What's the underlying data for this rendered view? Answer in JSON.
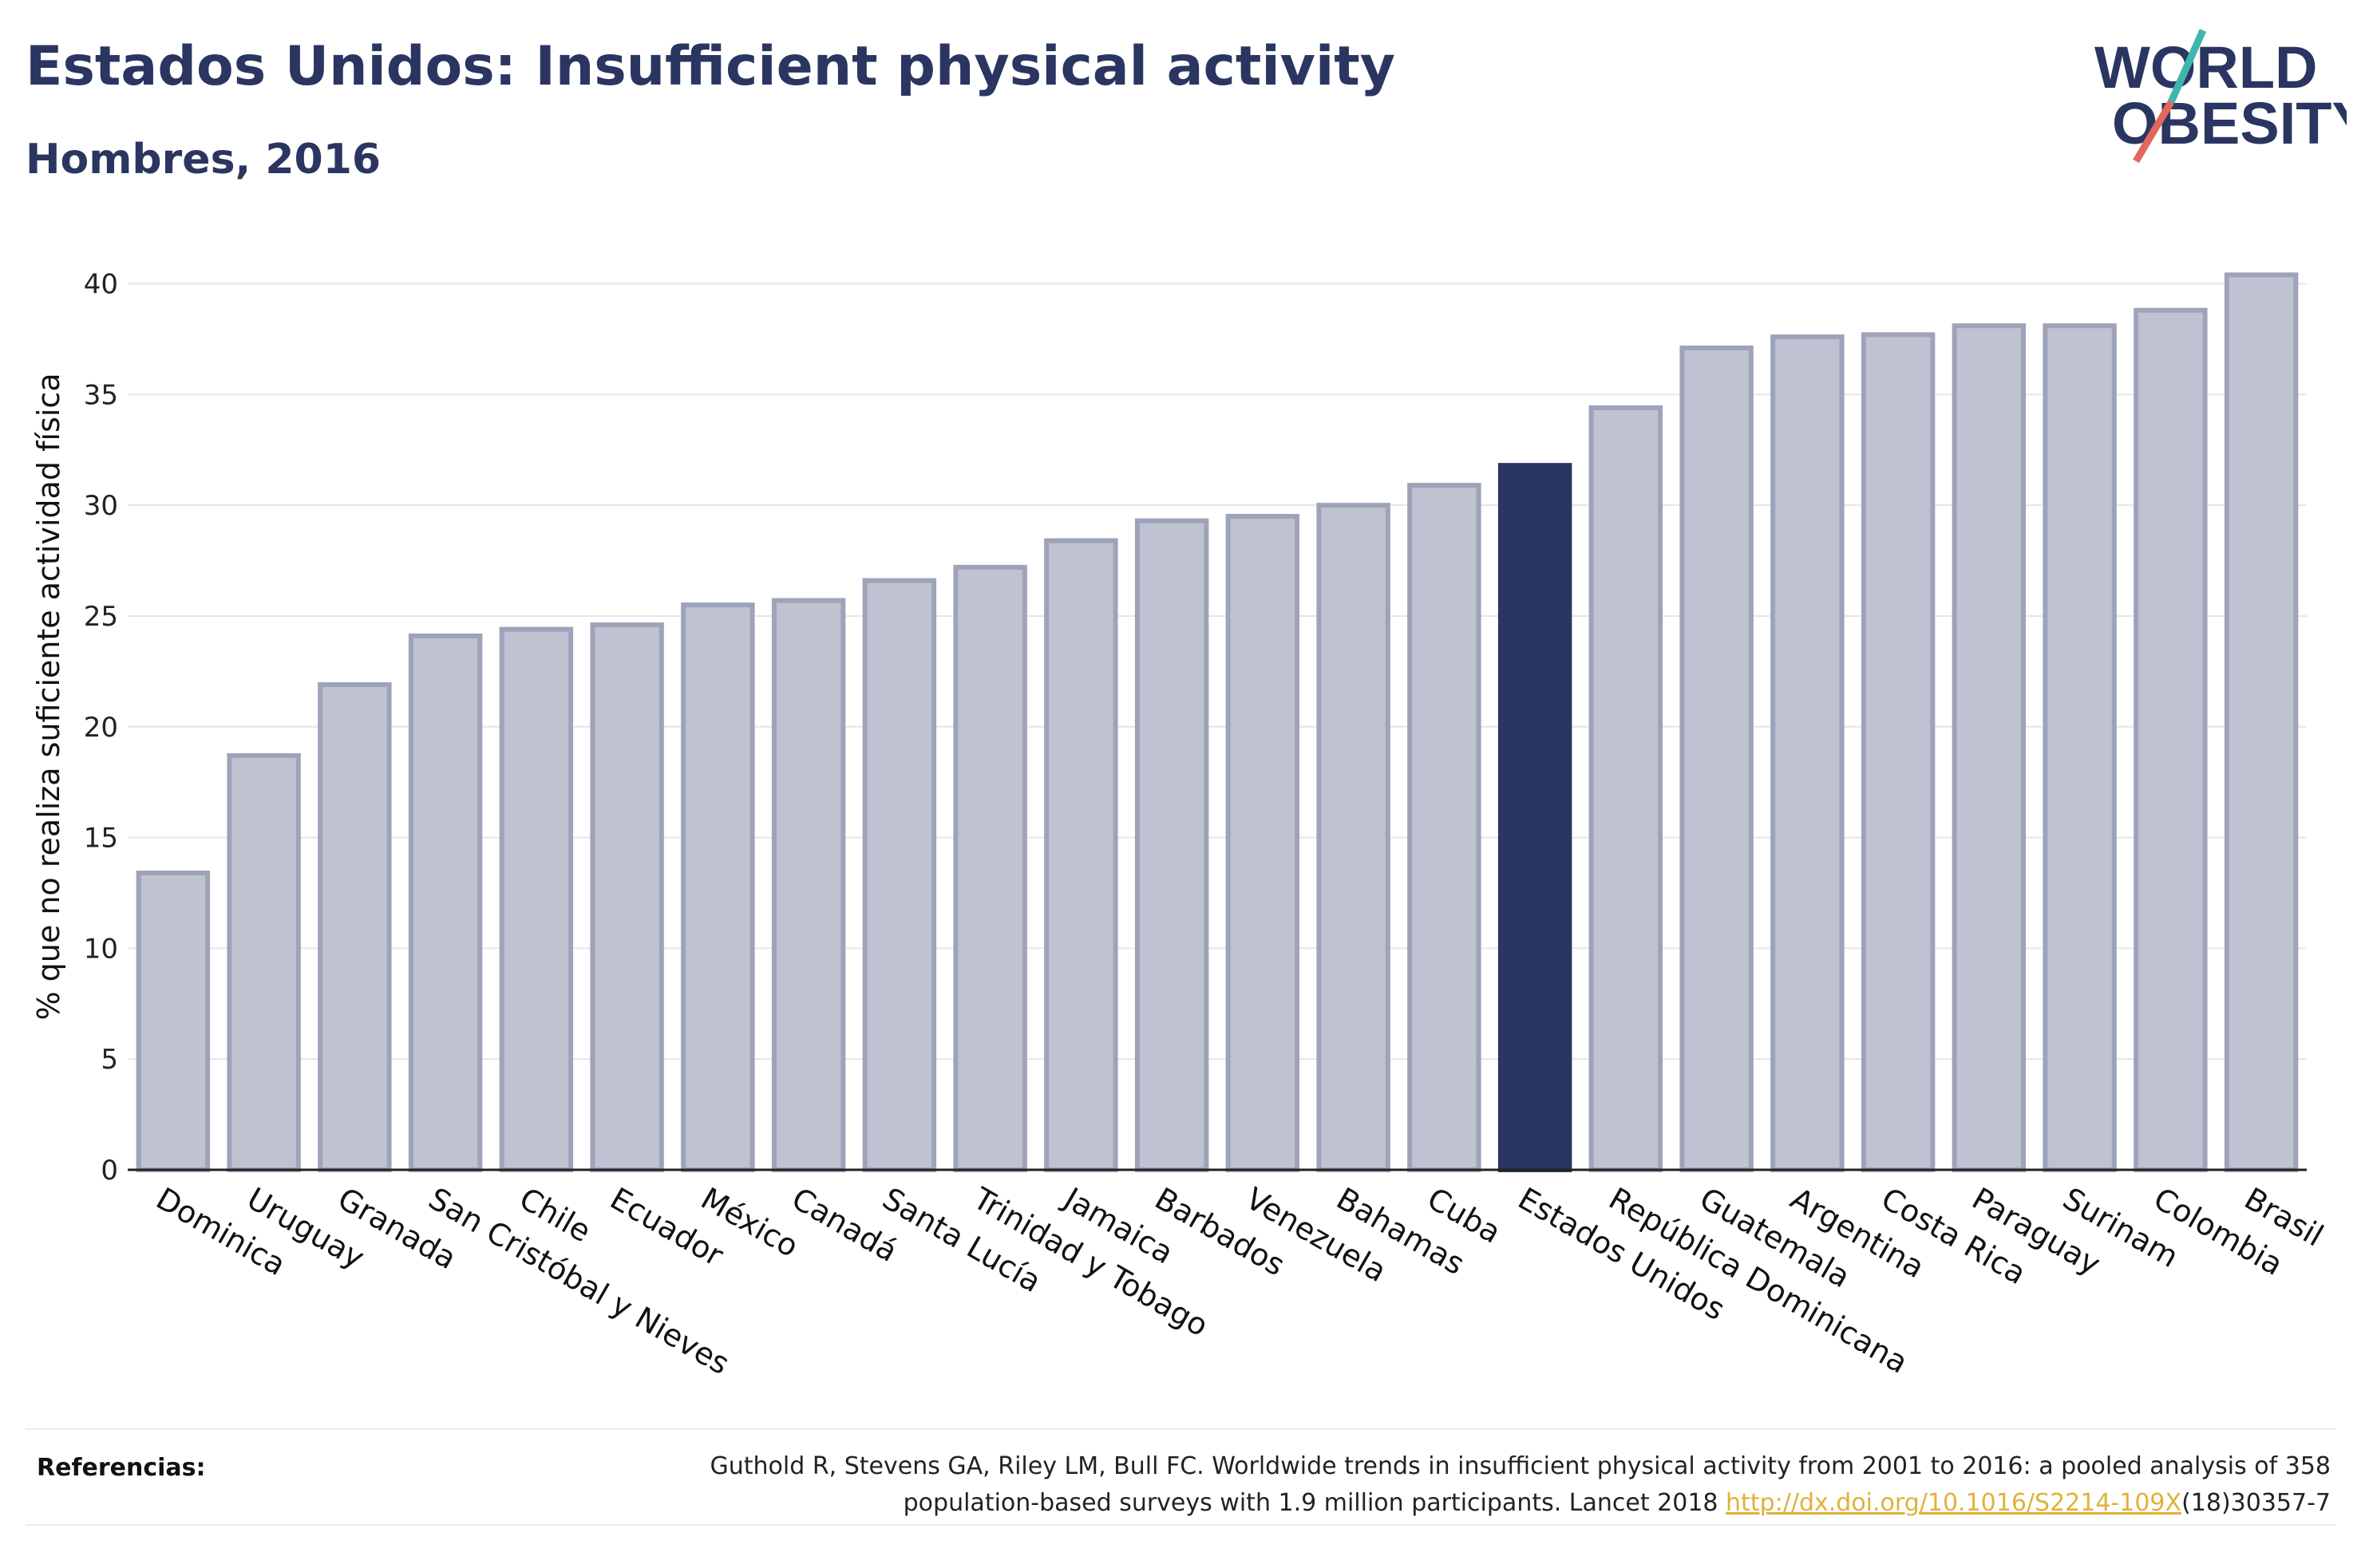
{
  "header": {
    "title": "Estados Unidos: Insufficient physical activity",
    "subtitle": "Hombres, 2016"
  },
  "logo": {
    "line1": "WORLD",
    "line2": "OBESITY"
  },
  "colors": {
    "highlight": "#2b3561",
    "bar_fill": "#bfc2d0",
    "bar_stroke": "#9ea3b9",
    "grid": "#e6e6e6",
    "axis": "#222222",
    "logo_teal": "#3fb5ad",
    "logo_coral": "#e4675b"
  },
  "chart_data": {
    "type": "bar",
    "title": "Estados Unidos: Insufficient physical activity",
    "subtitle": "Hombres, 2016",
    "xlabel": "",
    "ylabel": "% que no realiza suficiente actividad física",
    "ylim": [
      0,
      42
    ],
    "yticks": [
      0,
      5,
      10,
      15,
      20,
      25,
      30,
      35,
      40
    ],
    "grid": true,
    "highlight": "Estados Unidos",
    "categories": [
      "Dominica",
      "Uruguay",
      "Granada",
      "San Cristóbal y Nieves",
      "Chile",
      "Ecuador",
      "México",
      "Canadá",
      "Santa Lucía",
      "Trinidad y Tobago",
      "Jamaica",
      "Barbados",
      "Venezuela",
      "Bahamas",
      "Cuba",
      "Estados Unidos",
      "República Dominicana",
      "Guatemala",
      "Argentina",
      "Costa Rica",
      "Paraguay",
      "Surinam",
      "Colombia",
      "Brasil"
    ],
    "values": [
      13.4,
      18.7,
      21.9,
      24.1,
      24.4,
      24.6,
      25.5,
      25.7,
      26.6,
      27.2,
      28.4,
      29.3,
      29.5,
      30.0,
      30.9,
      31.8,
      34.4,
      37.1,
      37.6,
      37.7,
      38.1,
      38.1,
      38.8,
      40.4
    ]
  },
  "footer": {
    "references_label": "Referencias:",
    "reference_line1": "Guthold R, Stevens GA, Riley LM, Bull FC. Worldwide trends in insufficient physical activity from 2001 to 2016: a pooled analysis of 358",
    "reference_line2_before": "population-based surveys with 1.9 million participants. Lancet 2018 ",
    "reference_link": "http://dx.doi.org/10.1016/S2214-109X",
    "reference_line2_after": "(18)30357-7"
  }
}
